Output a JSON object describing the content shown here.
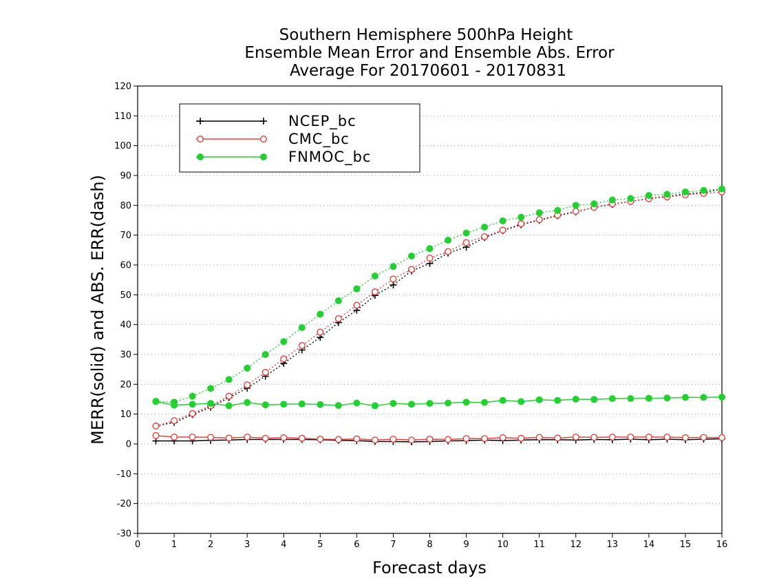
{
  "chart_data": {
    "type": "line",
    "title": [
      "Southern Hemisphere 500hPa Height",
      "Ensemble Mean Error and Ensemble Abs. Error",
      "Average For 20170601 - 20170831"
    ],
    "xlabel": "Forecast days",
    "ylabel": "MERR(solid) and ABS. ERR(dash)",
    "xlim": [
      0,
      16
    ],
    "ylim": [
      -30,
      120
    ],
    "xticks": [
      0,
      1,
      2,
      3,
      4,
      5,
      6,
      7,
      8,
      9,
      10,
      11,
      12,
      13,
      14,
      15,
      16
    ],
    "yticks": [
      -30,
      -20,
      -10,
      0,
      10,
      20,
      30,
      40,
      50,
      60,
      70,
      80,
      90,
      100,
      110,
      120
    ],
    "grid": "horizontal dotted",
    "legend_position": "top-left",
    "x": [
      0.5,
      1,
      1.5,
      2,
      2.5,
      3,
      3.5,
      4,
      4.5,
      5,
      5.5,
      6,
      6.5,
      7,
      7.5,
      8,
      8.5,
      9,
      9.5,
      10,
      10.5,
      11,
      11.5,
      12,
      12.5,
      13,
      13.5,
      14,
      14.5,
      15,
      15.5,
      16
    ],
    "series": [
      {
        "name": "NCEP_bc",
        "color": "#000000",
        "marker": "plus",
        "merr": [
          1.0,
          1.0,
          1.0,
          1.2,
          1.3,
          1.5,
          1.5,
          1.5,
          1.5,
          1.4,
          1.2,
          1.1,
          0.8,
          0.8,
          0.7,
          0.8,
          1.0,
          1.1,
          1.3,
          1.1,
          1.3,
          1.4,
          1.4,
          1.3,
          1.5,
          1.4,
          1.6,
          1.4,
          1.6,
          1.4,
          1.6,
          1.7
        ],
        "abs": [
          6.0,
          7.2,
          9.8,
          12.3,
          15.5,
          18.7,
          22.7,
          27.0,
          31.5,
          35.7,
          40.7,
          44.8,
          49.8,
          53.3,
          58.0,
          60.5,
          64.0,
          66.0,
          69.2,
          71.5,
          73.5,
          75.0,
          76.5,
          77.8,
          79.3,
          80.3,
          81.3,
          82.3,
          83.0,
          83.8,
          84.3,
          85.5
        ]
      },
      {
        "name": "CMC_bc",
        "color": "#e8413c",
        "marker": "open-circle",
        "merr": [
          2.8,
          2.3,
          2.3,
          2.2,
          2.0,
          2.3,
          1.9,
          2.1,
          1.9,
          1.6,
          1.5,
          1.7,
          1.3,
          1.6,
          1.3,
          1.6,
          1.5,
          1.8,
          1.8,
          2.1,
          1.9,
          2.2,
          2.0,
          2.3,
          2.2,
          2.3,
          2.3,
          2.3,
          2.3,
          2.1,
          2.2,
          2.1
        ],
        "abs": [
          6.0,
          7.8,
          10.2,
          12.8,
          16.0,
          19.8,
          24.0,
          28.5,
          33.0,
          37.5,
          42.0,
          46.5,
          51.0,
          55.3,
          58.5,
          62.3,
          64.5,
          67.5,
          69.5,
          71.7,
          73.8,
          75.2,
          76.7,
          78.0,
          79.3,
          80.5,
          81.3,
          82.2,
          82.8,
          83.5,
          84.0,
          84.5
        ]
      },
      {
        "name": "FNMOC_bc",
        "color": "#22d12f",
        "marker": "filled-circle",
        "merr": [
          14.2,
          13.0,
          13.3,
          13.6,
          12.8,
          13.9,
          13.1,
          13.3,
          13.4,
          13.2,
          12.9,
          13.7,
          12.8,
          13.6,
          13.3,
          13.6,
          13.7,
          14.0,
          13.9,
          14.6,
          14.2,
          14.8,
          14.6,
          15.0,
          14.9,
          15.2,
          15.2,
          15.3,
          15.4,
          15.6,
          15.6,
          15.7
        ],
        "abs": [
          14.3,
          14.0,
          16.0,
          18.6,
          21.6,
          25.4,
          30.0,
          34.3,
          39.0,
          43.5,
          48.0,
          52.0,
          56.3,
          59.5,
          63.0,
          65.5,
          68.3,
          70.7,
          72.7,
          74.8,
          76.0,
          77.5,
          78.3,
          80.0,
          80.5,
          81.8,
          82.3,
          83.3,
          83.7,
          84.5,
          85.0,
          85.5
        ]
      }
    ]
  }
}
